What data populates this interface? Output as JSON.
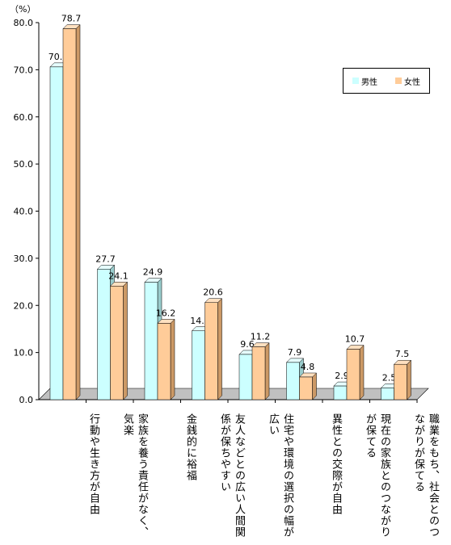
{
  "chart_data": {
    "type": "bar",
    "unit_label": "（%）",
    "categories": [
      "行動や生き方が自由",
      "家族を養う責任がなく、気楽",
      "金銭的に裕福",
      "友人などとの広い人間関係が保ちやすい",
      "住宅や環境の選択の幅が広い",
      "異性との交際が自由",
      "現在の家族とのつながりが保てる",
      "職業をもち、社会とのつながりが保てる"
    ],
    "series": [
      {
        "name": "男性",
        "color": "#ccffff",
        "values": [
          70.6,
          27.7,
          24.9,
          14.6,
          9.6,
          7.9,
          2.9,
          2.5
        ],
        "labels": [
          "70.6",
          "27.7",
          "24.9",
          "14.6",
          "9.6",
          "7.9",
          "2.9",
          "2.5"
        ]
      },
      {
        "name": "女性",
        "color": "#ffcc99",
        "values": [
          78.7,
          24.1,
          16.2,
          20.6,
          11.2,
          4.8,
          10.7,
          7.5
        ],
        "labels": [
          "78.7",
          "24.1",
          "16.2",
          "20.6",
          "11.2",
          "4.8",
          "10.7",
          "7.5"
        ]
      }
    ],
    "ylim": [
      0,
      80
    ],
    "yticks": [
      "0.0",
      "10.0",
      "20.0",
      "30.0",
      "40.0",
      "50.0",
      "60.0",
      "70.0",
      "80.0"
    ],
    "grid": false,
    "legend_position": "top-right"
  }
}
